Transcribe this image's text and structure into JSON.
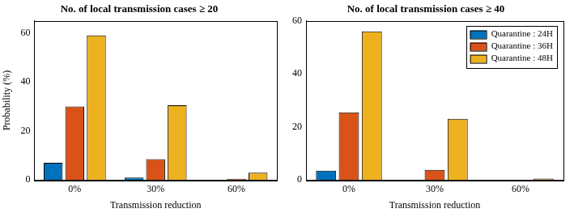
{
  "chart_data": [
    {
      "type": "bar",
      "title": "No. of local transmission cases ≥ 20",
      "x_label": "Transmission reduction",
      "y_label": "Probability (%)",
      "categories": [
        "0%",
        "30%",
        "60%"
      ],
      "series": [
        {
          "name": "Quarantine : 24H",
          "color": "#0072bd",
          "values": [
            7,
            1,
            0
          ]
        },
        {
          "name": "Quarantine : 36H",
          "color": "#d95319",
          "values": [
            30,
            8.5,
            0.5
          ]
        },
        {
          "name": "Quarantine : 48H",
          "color": "#edb120",
          "values": [
            59,
            30.5,
            3
          ]
        }
      ],
      "ylim": [
        0,
        65
      ],
      "yticks": [
        0,
        20,
        40,
        60
      ],
      "grid": false
    },
    {
      "type": "bar",
      "title": "No. of local transmission cases ≥ 40",
      "x_label": "Transmission reduction",
      "categories": [
        "0%",
        "30%",
        "60%"
      ],
      "series": [
        {
          "name": "Quarantine : 24H",
          "color": "#0072bd",
          "values": [
            3.5,
            0,
            0
          ]
        },
        {
          "name": "Quarantine : 36H",
          "color": "#d95319",
          "values": [
            25.5,
            3.8,
            0
          ]
        },
        {
          "name": "Quarantine : 48H",
          "color": "#edb120",
          "values": [
            56,
            23,
            0.5
          ]
        }
      ],
      "ylim": [
        0,
        60
      ],
      "yticks": [
        0,
        20,
        40,
        60
      ],
      "grid": false,
      "legend": "upper right"
    }
  ]
}
